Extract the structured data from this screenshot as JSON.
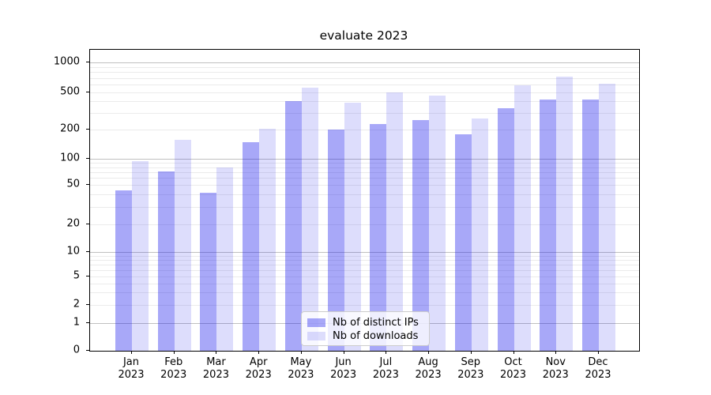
{
  "title": "evaluate 2023",
  "chart_data": {
    "type": "bar",
    "title": "evaluate 2023",
    "categories": [
      "Jan",
      "Feb",
      "Mar",
      "Apr",
      "May",
      "Jun",
      "Jul",
      "Aug",
      "Sep",
      "Oct",
      "Nov",
      "Dec"
    ],
    "x_year_label": "2023",
    "series": [
      {
        "name": "Nb of distinct IPs",
        "color": "#a8a8f8",
        "rgba": "rgba(20,20,235,0.37)",
        "values": [
          44,
          72,
          42,
          147,
          400,
          200,
          230,
          253,
          178,
          340,
          420,
          420
        ]
      },
      {
        "name": "Nb of downloads",
        "color": "#dcdcfa",
        "rgba": "rgba(20,20,235,0.145)",
        "values": [
          93,
          158,
          80,
          205,
          560,
          390,
          500,
          460,
          262,
          590,
          725,
          610
        ]
      }
    ],
    "y_axis": {
      "scale": "symlog",
      "ticks": [
        0,
        1,
        2,
        5,
        10,
        20,
        50,
        100,
        200,
        500,
        1000
      ],
      "ylim": [
        0,
        1300
      ]
    },
    "grid": true,
    "legend_position": "lower-center"
  }
}
